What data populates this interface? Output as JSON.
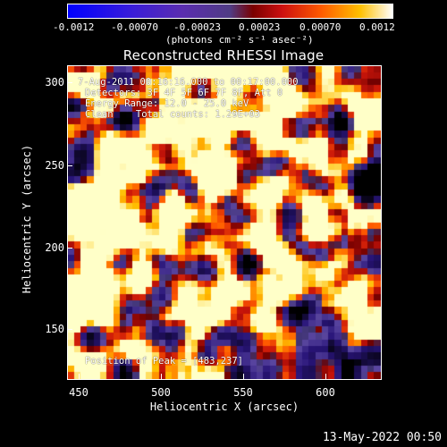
{
  "colorbar": {
    "ticks": [
      "-0.0012",
      "-0.00070",
      "-0.00023",
      "0.00023",
      "0.00070",
      "0.0012"
    ],
    "units": "(photons cm⁻² s⁻¹ asec⁻²)"
  },
  "title": "Reconstructed RHESSI Image",
  "annotations": {
    "time": "7-Aug-2011 00:16:16.000 to 00:17:00.000",
    "detectors": "Detectors: 3F 4F 5F 6F 7F 8F, Att 0",
    "energy": "Energy Range: 12.0 - 25.0 keV",
    "method": "Clean    Total counts: 1.29E+03",
    "peak": "Position of Peak = [483,237]"
  },
  "axes": {
    "xlabel": "Heliocentric X (arcsec)",
    "ylabel": "Heliocentric Y (arcsec)",
    "xticks": [
      "450",
      "500",
      "550",
      "600"
    ],
    "yticks": [
      "300",
      "250",
      "200",
      "150"
    ]
  },
  "datestamp": "13-May-2022 00:50"
}
